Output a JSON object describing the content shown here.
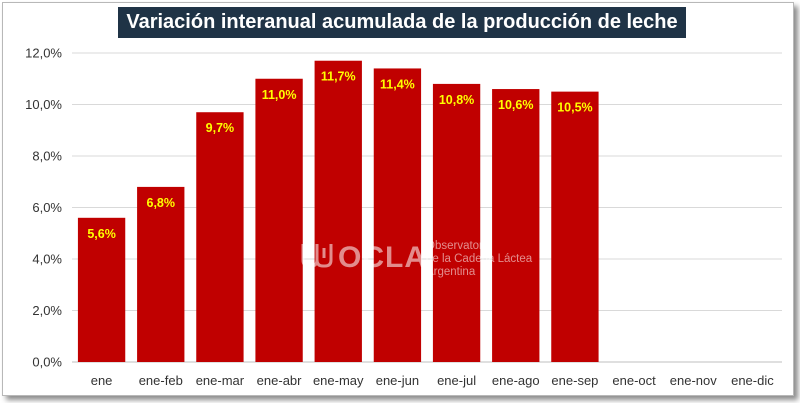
{
  "chart_data": {
    "type": "bar",
    "title": "Variación interanual acumulada de la producción de leche",
    "categories": [
      "ene",
      "ene-feb",
      "ene-mar",
      "ene-abr",
      "ene-may",
      "ene-jun",
      "ene-jul",
      "ene-ago",
      "ene-sep",
      "ene-oct",
      "ene-nov",
      "ene-dic"
    ],
    "values": [
      5.6,
      6.8,
      9.7,
      11.0,
      11.7,
      11.4,
      10.8,
      10.6,
      10.5,
      null,
      null,
      null
    ],
    "data_labels": [
      "5,6%",
      "6,8%",
      "9,7%",
      "11,0%",
      "11,7%",
      "11,4%",
      "10,8%",
      "10,6%",
      "10,5%",
      "",
      "",
      ""
    ],
    "ylim": [
      0,
      12
    ],
    "yticks": [
      0,
      2,
      4,
      6,
      8,
      10,
      12
    ],
    "ytick_labels": [
      "0,0%",
      "2,0%",
      "4,0%",
      "6,0%",
      "8,0%",
      "10,0%",
      "12,0%"
    ],
    "xlabel": "",
    "ylabel": "",
    "grid": true,
    "bar_color": "#c00000",
    "label_color": "#ffff00",
    "title_bg": "#1f3346"
  },
  "watermark": {
    "logo_text": "OCLA",
    "lines": [
      "Observatorio",
      "de la Cadena Láctea",
      "Argentina"
    ]
  }
}
